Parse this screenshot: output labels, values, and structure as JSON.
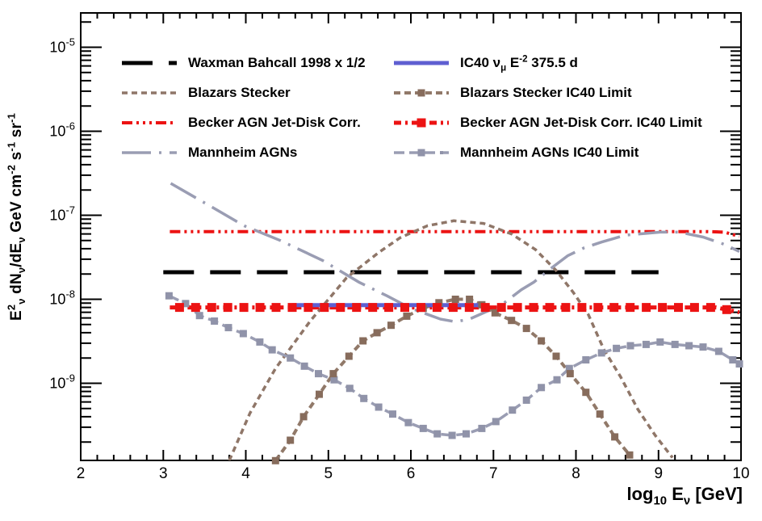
{
  "figure": {
    "x_axis": {
      "title_rich": "logsub{10} Esub{ν} [GeV]"
    },
    "y_axis": {
      "title_rich": "Esup{2}sub{ν} dNsub{ν}/dEsub{ν} GeV cmsup{-2} ssup{-1} srsup{-1}"
    }
  },
  "legend": {
    "left": [
      {
        "series_id": "waxman_bahcall",
        "label": "Waxman Bahcall 1998 x 1/2"
      },
      {
        "series_id": "blazars_stecker",
        "label": "Blazars Stecker"
      },
      {
        "series_id": "becker_agn",
        "label": "Becker AGN Jet-Disk Corr."
      },
      {
        "series_id": "mannheim_agns",
        "label": "Mannheim AGNs"
      }
    ],
    "right": [
      {
        "series_id": "ic40_e2",
        "label": "IC40 νsub{μ} Esup{-2} 375.5 d"
      },
      {
        "series_id": "blazars_stecker_limit",
        "label": "Blazars Stecker IC40 Limit"
      },
      {
        "series_id": "becker_agn_limit",
        "label": "Becker AGN Jet-Disk Corr. IC40 Limit"
      },
      {
        "series_id": "mannheim_agns_limit",
        "label": "Mannheim AGNs IC40 Limit"
      }
    ]
  },
  "chart_data": {
    "type": "line",
    "title": "",
    "xlabel": "log10 E_nu [GeV]",
    "ylabel": "E_nu^2 dN_nu/dE_nu [GeV cm^-2 s^-1 sr^-1]",
    "xlim": [
      2,
      10
    ],
    "ylim": [
      1.2e-10,
      2.6e-05
    ],
    "x_scale": "linear-log10-energy",
    "y_scale": "log",
    "grid": false,
    "legend_position": "top-inside",
    "x_major_ticks": [
      2,
      3,
      4,
      5,
      6,
      7,
      8,
      9,
      10
    ],
    "x_minor_step": 0.2,
    "y_major_tick_exponents": [
      -5,
      -6,
      -7,
      -8,
      -9
    ],
    "series": [
      {
        "id": "becker_agn",
        "name": "Becker AGN Jet-Disk Corr.",
        "color": "#ec1313",
        "width": 4,
        "dash": "13,5,3,5,3,5,3,5",
        "marker": "none",
        "points": [
          [
            3.08,
            6.4e-08
          ],
          [
            9.6,
            6.4e-08
          ],
          [
            9.8,
            6.3e-08
          ],
          [
            9.98,
            5.6e-08
          ]
        ]
      },
      {
        "id": "waxman_bahcall",
        "name": "Waxman Bahcall 1998 x 1/2",
        "color": "#000000",
        "width": 5,
        "dash": "38,20",
        "marker": "none",
        "points": [
          [
            3.0,
            2.1e-08
          ],
          [
            9.0,
            2.1e-08
          ]
        ]
      },
      {
        "id": "blazars_stecker",
        "name": "Blazars Stecker",
        "color": "#8f7668",
        "width": 3.5,
        "dash": "7,5",
        "marker": "none",
        "points": [
          [
            3.8,
            1.2e-10
          ],
          [
            4.05,
            4.4e-10
          ],
          [
            4.36,
            1.5e-09
          ],
          [
            4.78,
            5.5e-09
          ],
          [
            5.22,
            1.8e-08
          ],
          [
            5.61,
            3.6e-08
          ],
          [
            5.87,
            5.4e-08
          ],
          [
            6.2,
            7.5e-08
          ],
          [
            6.52,
            8.6e-08
          ],
          [
            6.88,
            8e-08
          ],
          [
            7.22,
            6e-08
          ],
          [
            7.51,
            3.9e-08
          ],
          [
            7.76,
            2.2e-08
          ],
          [
            7.97,
            1.2e-08
          ],
          [
            8.15,
            6.6e-09
          ],
          [
            8.34,
            2.5e-09
          ],
          [
            8.54,
            1.2e-09
          ],
          [
            8.75,
            4.9e-10
          ],
          [
            8.96,
            2.4e-10
          ],
          [
            9.17,
            1.3e-10
          ]
        ]
      },
      {
        "id": "mannheim_agns",
        "name": "Mannheim AGNs",
        "color": "#9a9db3",
        "width": 3.5,
        "dash": "36,10,3,10",
        "marker": "none",
        "points": [
          [
            3.09,
            2.4e-07
          ],
          [
            3.56,
            1.3e-07
          ],
          [
            3.98,
            7.5e-08
          ],
          [
            4.42,
            5e-08
          ],
          [
            4.93,
            2.9e-08
          ],
          [
            5.37,
            1.6e-08
          ],
          [
            5.71,
            1.1e-08
          ],
          [
            6.0,
            7.8e-09
          ],
          [
            6.36,
            5.8e-09
          ],
          [
            6.54,
            5.4e-09
          ],
          [
            6.71,
            5.8e-09
          ],
          [
            7.1,
            8.6e-09
          ],
          [
            7.34,
            1.3e-08
          ],
          [
            7.49,
            1.6e-08
          ],
          [
            7.69,
            2.3e-08
          ],
          [
            7.9,
            3.3e-08
          ],
          [
            8.1,
            4.1e-08
          ],
          [
            8.31,
            4.8e-08
          ],
          [
            8.6,
            5.8e-08
          ],
          [
            9.02,
            6.3e-08
          ],
          [
            9.25,
            6.3e-08
          ],
          [
            9.54,
            5.5e-08
          ],
          [
            9.8,
            4.5e-08
          ],
          [
            9.98,
            3.7e-08
          ]
        ]
      },
      {
        "id": "mannheim_agns_limit",
        "name": "Mannheim AGNs IC40 Limit",
        "color": "#9a9db3",
        "marker_color": "#9093a9",
        "width": 3.5,
        "dash": "13,6",
        "marker": "square",
        "marker_size": 9,
        "marker_at": "points",
        "points": [
          [
            3.07,
            1.1e-08
          ],
          [
            3.27,
            8.9e-09
          ],
          [
            3.44,
            6.4e-09
          ],
          [
            3.62,
            5.5e-09
          ],
          [
            3.79,
            4.6e-09
          ],
          [
            3.97,
            3.9e-09
          ],
          [
            4.17,
            3.1e-09
          ],
          [
            4.32,
            2.5e-09
          ],
          [
            4.54,
            2e-09
          ],
          [
            4.71,
            1.6e-09
          ],
          [
            4.88,
            1.3e-09
          ],
          [
            5.07,
            1.1e-09
          ],
          [
            5.26,
            8.7e-10
          ],
          [
            5.43,
            6.6e-10
          ],
          [
            5.61,
            5.2e-10
          ],
          [
            5.78,
            4.3e-10
          ],
          [
            5.97,
            3.4e-10
          ],
          [
            6.15,
            2.9e-10
          ],
          [
            6.32,
            2.5e-10
          ],
          [
            6.5,
            2.4e-10
          ],
          [
            6.67,
            2.5e-10
          ],
          [
            6.86,
            2.9e-10
          ],
          [
            7.03,
            3.5e-10
          ],
          [
            7.23,
            4.8e-10
          ],
          [
            7.4,
            6.3e-10
          ],
          [
            7.58,
            8.9e-10
          ],
          [
            7.77,
            1.1e-09
          ],
          [
            7.92,
            1.5e-09
          ],
          [
            8.12,
            1.9e-09
          ],
          [
            8.31,
            2.3e-09
          ],
          [
            8.49,
            2.6e-09
          ],
          [
            8.66,
            2.8e-09
          ],
          [
            8.85,
            2.9e-09
          ],
          [
            9.02,
            3.1e-09
          ],
          [
            9.2,
            2.9e-09
          ],
          [
            9.37,
            2.8e-09
          ],
          [
            9.54,
            2.7e-09
          ],
          [
            9.73,
            2.4e-09
          ],
          [
            9.9,
            1.9e-09
          ],
          [
            9.98,
            1.7e-09
          ]
        ]
      },
      {
        "id": "blazars_stecker_limit",
        "name": "Blazars Stecker IC40 Limit",
        "color": "#917969",
        "marker_color": "#876c5c",
        "width": 4,
        "dash": "8,5",
        "marker": "square",
        "marker_size": 9,
        "marker_at": "points",
        "points": [
          [
            4.36,
            1.2e-10
          ],
          [
            4.54,
            2.1e-10
          ],
          [
            4.7,
            4e-10
          ],
          [
            4.89,
            7.4e-10
          ],
          [
            5.06,
            1.3e-09
          ],
          [
            5.25,
            2.1e-09
          ],
          [
            5.42,
            3.2e-09
          ],
          [
            5.59,
            4e-09
          ],
          [
            5.76,
            4.9e-09
          ],
          [
            5.95,
            6.3e-09
          ],
          [
            6.15,
            7.8e-09
          ],
          [
            6.34,
            9.1e-09
          ],
          [
            6.54,
            1e-08
          ],
          [
            6.71,
            1e-08
          ],
          [
            6.86,
            8.6e-09
          ],
          [
            7.02,
            6.9e-09
          ],
          [
            7.22,
            5.6e-09
          ],
          [
            7.4,
            4.5e-09
          ],
          [
            7.58,
            3.2e-09
          ],
          [
            7.76,
            2.1e-09
          ],
          [
            7.93,
            1.3e-09
          ],
          [
            8.12,
            7.8e-10
          ],
          [
            8.29,
            4.3e-10
          ],
          [
            8.47,
            2.3e-10
          ],
          [
            8.65,
            1.4e-10
          ]
        ]
      },
      {
        "id": "becker_agn_limit",
        "name": "Becker AGN Jet-Disk Corr. IC40 Limit",
        "color": "#ec1313",
        "width": 5,
        "dash": "9,5,3,5",
        "marker": "square",
        "marker_size": 11,
        "marker_interval": 0.195,
        "points": [
          [
            3.08,
            8e-09
          ],
          [
            9.7,
            8e-09
          ],
          [
            9.98,
            7e-09
          ]
        ]
      },
      {
        "id": "ic40_e2",
        "name": "IC40 nu_mu E^-2 375.5 d",
        "color": "#5f5fd1",
        "width": 5,
        "dash": "",
        "marker": "none",
        "points": [
          [
            4.56,
            8.5e-09
          ],
          [
            6.84,
            8.5e-09
          ]
        ]
      }
    ]
  }
}
